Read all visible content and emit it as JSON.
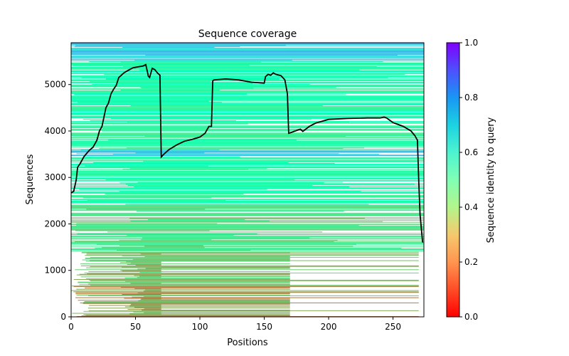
{
  "chart_data": {
    "type": "heatmap",
    "title": "Sequence coverage",
    "xlabel": "Positions",
    "ylabel": "Sequences",
    "xlim": [
      0,
      274
    ],
    "ylim": [
      0,
      5900
    ],
    "x_ticks": [
      0,
      50,
      100,
      150,
      200,
      250
    ],
    "y_ticks": [
      0,
      1000,
      2000,
      3000,
      4000,
      5000
    ],
    "grid": false,
    "colorbar": {
      "label": "Sequence identity to query",
      "colormap": "rainbow_r",
      "range": [
        0.0,
        1.0
      ],
      "ticks": [
        "0.0",
        "0.2",
        "0.4",
        "0.6",
        "0.8",
        "1.0"
      ]
    },
    "identity_bands": [
      {
        "from": 0,
        "to": 700,
        "mean_identity": 0.22
      },
      {
        "from": 700,
        "to": 1400,
        "mean_identity": 0.28
      },
      {
        "from": 1400,
        "to": 2400,
        "mean_identity": 0.33
      },
      {
        "from": 2400,
        "to": 3450,
        "mean_identity": 0.45
      },
      {
        "from": 3450,
        "to": 3600,
        "mean_identity": 0.68
      },
      {
        "from": 3600,
        "to": 3950,
        "mean_identity": 0.42
      },
      {
        "from": 3950,
        "to": 5500,
        "mean_identity": 0.47
      },
      {
        "from": 5500,
        "to": 5900,
        "mean_identity": 0.7
      }
    ],
    "coverage_line": {
      "name": "coverage",
      "color": "#000000",
      "x": [
        0,
        2,
        4,
        5,
        7,
        10,
        14,
        17,
        20,
        22,
        24,
        27,
        29,
        31,
        33,
        35,
        37,
        39,
        41,
        44,
        48,
        52,
        56,
        58,
        60,
        61,
        63,
        65,
        67,
        69,
        70,
        72,
        76,
        82,
        88,
        94,
        100,
        104,
        107,
        109,
        110,
        111,
        115,
        120,
        130,
        140,
        150,
        151,
        153,
        155,
        157,
        159,
        163,
        166,
        168,
        169,
        170,
        174,
        178,
        180,
        185,
        190,
        200,
        215,
        230,
        240,
        243,
        245,
        250,
        258,
        264,
        267,
        269,
        270,
        271,
        273
      ],
      "y": [
        2670,
        2700,
        2950,
        3220,
        3300,
        3450,
        3580,
        3650,
        3800,
        4000,
        4100,
        4500,
        4600,
        4800,
        4900,
        4980,
        5150,
        5200,
        5250,
        5300,
        5360,
        5380,
        5400,
        5430,
        5180,
        5150,
        5350,
        5320,
        5250,
        5200,
        3440,
        3500,
        3600,
        3700,
        3780,
        3820,
        3870,
        3950,
        4100,
        4100,
        5080,
        5100,
        5110,
        5120,
        5100,
        5050,
        5030,
        5170,
        5220,
        5200,
        5250,
        5220,
        5190,
        5100,
        4800,
        3950,
        3960,
        4000,
        4040,
        3990,
        4100,
        4170,
        4250,
        4270,
        4280,
        4280,
        4300,
        4280,
        4180,
        4100,
        4000,
        3900,
        3800,
        2900,
        2200,
        1600
      ]
    }
  }
}
